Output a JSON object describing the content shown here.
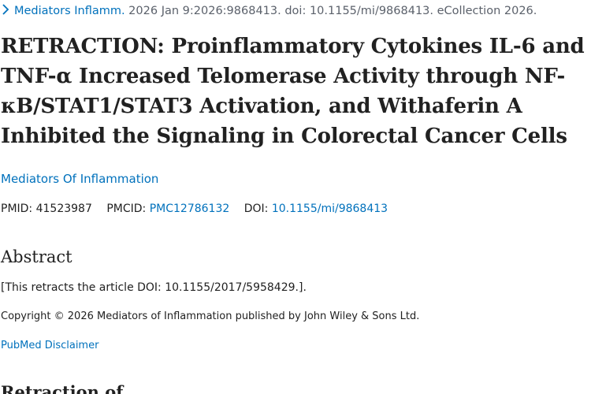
{
  "citation": {
    "journal_link": "Mediators Inflamm.",
    "details": " 2026 Jan 9:2026:9868413. doi: 10.1155/mi/9868413. eCollection 2026."
  },
  "article": {
    "title": "RETRACTION: Proinflammatory Cytokines IL-6 and TNF-α Increased Telomerase Activity through NF-κB/STAT1/STAT3 Activation, and Withaferin A Inhibited the Signaling in Colorectal Cancer Cells",
    "journal": "Mediators Of Inflammation"
  },
  "identifiers": {
    "pmid_label": "PMID:",
    "pmid": "41523987",
    "pmcid_label": "PMCID:",
    "pmcid": "PMC12786132",
    "doi_label": "DOI:",
    "doi": "10.1155/mi/9868413"
  },
  "abstract": {
    "heading": "Abstract",
    "text": "[This retracts the article DOI: 10.1155/2017/5958429.].",
    "copyright": "Copyright © 2026 Mediators of Inflammation published by John Wiley & Sons Ltd."
  },
  "links": {
    "disclaimer": "PubMed Disclaimer"
  },
  "sections": {
    "retraction_heading": "Retraction of"
  },
  "icons": {
    "expand": "chevron-right-icon"
  },
  "colors": {
    "link": "#0071bc",
    "text": "#212121",
    "muted": "#5b616b"
  }
}
